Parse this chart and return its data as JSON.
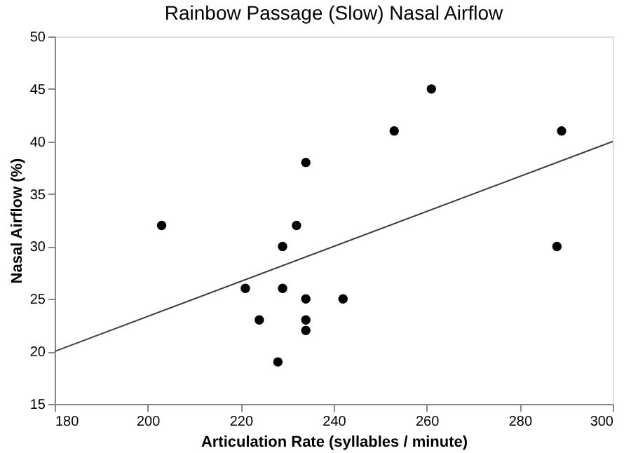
{
  "chart_data": {
    "type": "scatter",
    "title": "Rainbow Passage (Slow) Nasal Airflow",
    "xlabel": "Articulation Rate (syllables / minute)",
    "ylabel": "Nasal Airflow (%)",
    "xlim": [
      180,
      300
    ],
    "xticks": [
      180,
      200,
      220,
      240,
      260,
      280,
      300
    ],
    "ylim": [
      15,
      50
    ],
    "yticks": [
      15,
      20,
      25,
      30,
      35,
      40,
      45,
      50
    ],
    "grid": false,
    "series": [
      {
        "marker": "circle",
        "color": "#000000",
        "x": [
          203,
          221,
          224,
          228,
          229,
          229,
          232,
          234,
          234,
          234,
          234,
          242,
          253,
          261,
          288,
          289
        ],
        "values": [
          32,
          26,
          23,
          19,
          30,
          26,
          32,
          38,
          25,
          23,
          22,
          25,
          41,
          45,
          30,
          41
        ]
      },
      {
        "type": "line",
        "color": "#404040",
        "x": [
          180,
          300
        ],
        "values": [
          20,
          40
        ]
      }
    ]
  }
}
